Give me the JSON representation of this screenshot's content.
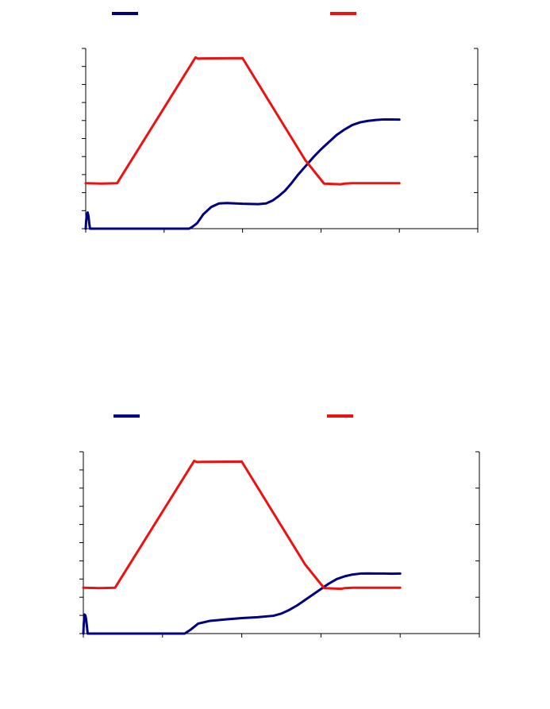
{
  "colors": {
    "series_blue": "#000080",
    "series_red": "#ee1111",
    "axis": "#000000",
    "background": "#ffffff"
  },
  "chart_data": [
    {
      "type": "line",
      "title": "",
      "xlabel": "",
      "ylabel": "",
      "y2label": "",
      "grid": false,
      "legend_placement": "top",
      "xlim": [
        0,
        50
      ],
      "ylim": [
        0,
        10
      ],
      "y2lim": [
        0,
        5
      ],
      "x_tick_count": 6,
      "y_tick_count": 11,
      "y2_tick_count": 6,
      "series": [
        {
          "axis": "left",
          "color": "#000080",
          "x": [
            0,
            0.05,
            0.15,
            0.25,
            0.35,
            0.45,
            0.55,
            1,
            5,
            10,
            13.2,
            13.6,
            14.2,
            15,
            16,
            17,
            18,
            20,
            22,
            23,
            23.8,
            24.6,
            25.4,
            26.2,
            27,
            28,
            29,
            30,
            31,
            32,
            33,
            34,
            35,
            36,
            37,
            38,
            39,
            40
          ],
          "y": [
            0,
            0.4,
            0.8,
            0.9,
            0.7,
            0.3,
            0,
            0,
            0,
            0,
            0,
            0.1,
            0.3,
            0.8,
            1.2,
            1.4,
            1.42,
            1.38,
            1.36,
            1.4,
            1.55,
            1.8,
            2.1,
            2.5,
            2.95,
            3.45,
            3.95,
            4.4,
            4.8,
            5.2,
            5.5,
            5.75,
            5.9,
            5.98,
            6.03,
            6.06,
            6.06,
            6.05
          ]
        },
        {
          "axis": "right",
          "color": "#ee1111",
          "x": [
            0,
            2,
            4,
            14,
            14.3,
            20,
            28,
            30.4,
            32.5,
            33,
            34,
            36,
            40
          ],
          "y": [
            1.26,
            1.25,
            1.26,
            4.75,
            4.72,
            4.73,
            1.9,
            1.25,
            1.23,
            1.25,
            1.26,
            1.26,
            1.26
          ]
        }
      ]
    },
    {
      "type": "line",
      "title": "",
      "xlabel": "",
      "ylabel": "",
      "y2label": "",
      "grid": false,
      "legend_placement": "top",
      "xlim": [
        0,
        50
      ],
      "ylim": [
        0,
        10
      ],
      "y2lim": [
        0,
        5
      ],
      "x_tick_count": 6,
      "y_tick_count": 11,
      "y2_tick_count": 6,
      "series": [
        {
          "axis": "left",
          "color": "#000080",
          "x": [
            0,
            0.05,
            0.15,
            0.25,
            0.35,
            0.45,
            0.55,
            1,
            5,
            10,
            12.8,
            13.5,
            14.5,
            16,
            18,
            20,
            22,
            24,
            25,
            26,
            27,
            28,
            29,
            30,
            31,
            32,
            33,
            34,
            35,
            36,
            37,
            38,
            39,
            40
          ],
          "y": [
            0,
            0.5,
            1.05,
            1.0,
            0.8,
            0.4,
            0,
            0,
            0,
            0,
            0,
            0.2,
            0.55,
            0.7,
            0.78,
            0.85,
            0.9,
            0.98,
            1.1,
            1.3,
            1.55,
            1.85,
            2.15,
            2.45,
            2.75,
            3.0,
            3.15,
            3.25,
            3.3,
            3.31,
            3.3,
            3.3,
            3.29,
            3.3
          ]
        },
        {
          "axis": "right",
          "color": "#ee1111",
          "x": [
            0,
            2,
            4,
            14,
            14.3,
            20,
            28,
            30.4,
            32.5,
            33,
            34,
            36,
            40
          ],
          "y": [
            1.26,
            1.25,
            1.26,
            4.75,
            4.72,
            4.73,
            1.9,
            1.25,
            1.23,
            1.25,
            1.26,
            1.26,
            1.26
          ]
        }
      ]
    }
  ]
}
